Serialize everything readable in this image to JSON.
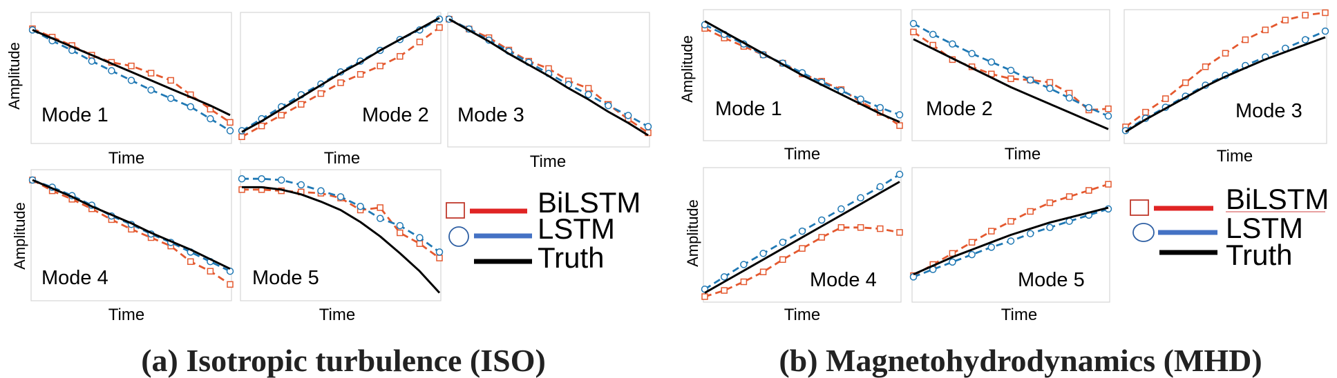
{
  "colors": {
    "bilstm": "#e4582e",
    "lstm": "#1f78b4",
    "truth": "#000000",
    "legend_bilstm": "#e02424",
    "legend_lstm": "#4472c4",
    "legend_box": "#c0392b",
    "legend_circle": "#2e5fa3",
    "frame": "#d6d6d6"
  },
  "chart_data": [
    {
      "panel": "a",
      "caption": "(a) Isotropic turbulence (ISO)",
      "legend": [
        "BiLSTM",
        "LSTM",
        "Truth"
      ],
      "subplots": [
        {
          "type": "line",
          "title": "Mode 1",
          "xlabel": "Time",
          "ylabel": "Amplitude",
          "ylim": [
            0,
            1
          ],
          "x": [
            0,
            1,
            2,
            3,
            4,
            5,
            6,
            7,
            8,
            9,
            10
          ],
          "series": [
            {
              "name": "Truth",
              "values": [
                0.9,
                0.83,
                0.76,
                0.69,
                0.62,
                0.55,
                0.48,
                0.41,
                0.34,
                0.27,
                0.19
              ]
            },
            {
              "name": "LSTM",
              "values": [
                0.9,
                0.81,
                0.73,
                0.64,
                0.56,
                0.48,
                0.4,
                0.33,
                0.26,
                0.16,
                0.06
              ]
            },
            {
              "name": "BiLSTM",
              "values": [
                0.91,
                0.84,
                0.77,
                0.69,
                0.63,
                0.6,
                0.54,
                0.48,
                0.36,
                0.24,
                0.13
              ]
            }
          ]
        },
        {
          "type": "line",
          "title": "Mode 2",
          "xlabel": "Time",
          "ylabel": "",
          "ylim": [
            0,
            1
          ],
          "x": [
            0,
            1,
            2,
            3,
            4,
            5,
            6,
            7,
            8,
            9,
            10
          ],
          "series": [
            {
              "name": "Truth",
              "values": [
                0.05,
                0.14,
                0.24,
                0.34,
                0.44,
                0.54,
                0.63,
                0.73,
                0.82,
                0.91,
                1.0
              ]
            },
            {
              "name": "LSTM",
              "values": [
                0.06,
                0.16,
                0.26,
                0.36,
                0.45,
                0.55,
                0.64,
                0.73,
                0.82,
                0.9,
                0.99
              ]
            },
            {
              "name": "BiLSTM",
              "values": [
                0.01,
                0.1,
                0.19,
                0.28,
                0.37,
                0.46,
                0.53,
                0.6,
                0.68,
                0.8,
                0.92
              ]
            }
          ]
        },
        {
          "type": "line",
          "title": "Mode 3",
          "xlabel": "Time",
          "ylabel": "",
          "ylim": [
            0,
            1
          ],
          "x": [
            0,
            1,
            2,
            3,
            4,
            5,
            6,
            7,
            8,
            9,
            10
          ],
          "series": [
            {
              "name": "Truth",
              "values": [
                0.99,
                0.9,
                0.81,
                0.71,
                0.62,
                0.53,
                0.43,
                0.34,
                0.24,
                0.15,
                0.05
              ]
            },
            {
              "name": "LSTM",
              "values": [
                0.99,
                0.91,
                0.82,
                0.73,
                0.64,
                0.55,
                0.46,
                0.38,
                0.29,
                0.21,
                0.12
              ]
            },
            {
              "name": "BiLSTM",
              "values": [
                0.99,
                0.91,
                0.84,
                0.74,
                0.65,
                0.59,
                0.49,
                0.43,
                0.3,
                0.18,
                0.07
              ]
            }
          ]
        },
        {
          "type": "line",
          "title": "Mode 4",
          "xlabel": "Time",
          "ylabel": "Amplitude",
          "ylim": [
            0,
            1
          ],
          "x": [
            0,
            1,
            2,
            3,
            4,
            5,
            6,
            7,
            8,
            9,
            10
          ],
          "series": [
            {
              "name": "Truth",
              "values": [
                0.96,
                0.89,
                0.82,
                0.74,
                0.67,
                0.6,
                0.52,
                0.45,
                0.38,
                0.3,
                0.22
              ]
            },
            {
              "name": "LSTM",
              "values": [
                0.96,
                0.9,
                0.83,
                0.75,
                0.66,
                0.59,
                0.51,
                0.44,
                0.36,
                0.28,
                0.2
              ]
            },
            {
              "name": "BiLSTM",
              "values": [
                0.96,
                0.87,
                0.8,
                0.72,
                0.63,
                0.55,
                0.48,
                0.41,
                0.28,
                0.2,
                0.09
              ]
            }
          ]
        },
        {
          "type": "line",
          "title": "Mode 5",
          "xlabel": "Time",
          "ylabel": "",
          "ylim": [
            0,
            1
          ],
          "x": [
            0,
            1,
            2,
            3,
            4,
            5,
            6,
            7,
            8,
            9,
            10
          ],
          "series": [
            {
              "name": "Truth",
              "values": [
                0.9,
                0.9,
                0.88,
                0.84,
                0.78,
                0.71,
                0.61,
                0.49,
                0.35,
                0.2,
                0.02
              ]
            },
            {
              "name": "LSTM",
              "values": [
                0.97,
                0.97,
                0.96,
                0.92,
                0.87,
                0.82,
                0.74,
                0.64,
                0.58,
                0.48,
                0.36
              ]
            },
            {
              "name": "BiLSTM",
              "values": [
                0.88,
                0.88,
                0.87,
                0.86,
                0.85,
                0.81,
                0.71,
                0.73,
                0.52,
                0.43,
                0.31
              ]
            }
          ]
        }
      ]
    },
    {
      "panel": "b",
      "caption": "(b) Magnetohydrodynamics (MHD)",
      "legend": [
        "BiLSTM",
        "LSTM",
        "Truth"
      ],
      "subplots": [
        {
          "type": "line",
          "title": "Mode 1",
          "xlabel": "Time",
          "ylabel": "Amplitude",
          "ylim": [
            0,
            1
          ],
          "x": [
            0,
            1,
            2,
            3,
            4,
            5,
            6,
            7,
            8,
            9,
            10
          ],
          "series": [
            {
              "name": "Truth",
              "values": [
                0.95,
                0.86,
                0.77,
                0.68,
                0.59,
                0.5,
                0.42,
                0.34,
                0.26,
                0.18,
                0.11
              ]
            },
            {
              "name": "LSTM",
              "values": [
                0.92,
                0.84,
                0.76,
                0.67,
                0.6,
                0.52,
                0.44,
                0.37,
                0.3,
                0.23,
                0.17
              ]
            },
            {
              "name": "BiLSTM",
              "values": [
                0.89,
                0.81,
                0.74,
                0.67,
                0.6,
                0.51,
                0.45,
                0.38,
                0.28,
                0.19,
                0.08
              ]
            }
          ]
        },
        {
          "type": "line",
          "title": "Mode 2",
          "xlabel": "Time",
          "ylabel": "",
          "ylim": [
            0,
            1
          ],
          "x": [
            0,
            1,
            2,
            3,
            4,
            5,
            6,
            7,
            8,
            9,
            10
          ],
          "series": [
            {
              "name": "Truth",
              "values": [
                0.8,
                0.72,
                0.64,
                0.56,
                0.48,
                0.4,
                0.33,
                0.26,
                0.19,
                0.12,
                0.05
              ]
            },
            {
              "name": "LSTM",
              "values": [
                0.93,
                0.84,
                0.76,
                0.68,
                0.61,
                0.54,
                0.46,
                0.39,
                0.31,
                0.23,
                0.16
              ]
            },
            {
              "name": "BiLSTM",
              "values": [
                0.86,
                0.75,
                0.63,
                0.57,
                0.51,
                0.47,
                0.46,
                0.44,
                0.35,
                0.21,
                0.22
              ]
            }
          ]
        },
        {
          "type": "line",
          "title": "Mode 3",
          "xlabel": "Time",
          "ylabel": "",
          "ylim": [
            0,
            1
          ],
          "x": [
            0,
            1,
            2,
            3,
            4,
            5,
            6,
            7,
            8,
            9,
            10
          ],
          "series": [
            {
              "name": "Truth",
              "values": [
                0.05,
                0.15,
                0.24,
                0.33,
                0.42,
                0.5,
                0.57,
                0.64,
                0.7,
                0.76,
                0.82
              ]
            },
            {
              "name": "LSTM",
              "values": [
                0.06,
                0.16,
                0.25,
                0.34,
                0.43,
                0.51,
                0.59,
                0.66,
                0.73,
                0.8,
                0.87
              ]
            },
            {
              "name": "BiLSTM",
              "values": [
                0.09,
                0.21,
                0.32,
                0.45,
                0.58,
                0.69,
                0.8,
                0.88,
                0.96,
                1.0,
                1.02
              ]
            }
          ]
        },
        {
          "type": "line",
          "title": "Mode 4",
          "xlabel": "Time",
          "ylabel": "Amplitude",
          "ylim": [
            0,
            1
          ],
          "x": [
            0,
            1,
            2,
            3,
            4,
            5,
            6,
            7,
            8,
            9,
            10
          ],
          "series": [
            {
              "name": "Truth",
              "values": [
                0.03,
                0.12,
                0.21,
                0.3,
                0.39,
                0.48,
                0.57,
                0.66,
                0.75,
                0.84,
                0.93
              ]
            },
            {
              "name": "LSTM",
              "values": [
                0.06,
                0.16,
                0.26,
                0.35,
                0.44,
                0.53,
                0.62,
                0.71,
                0.8,
                0.89,
                0.99
              ]
            },
            {
              "name": "BiLSTM",
              "values": [
                0.0,
                0.05,
                0.12,
                0.2,
                0.3,
                0.39,
                0.48,
                0.56,
                0.56,
                0.55,
                0.52
              ]
            }
          ]
        },
        {
          "type": "line",
          "title": "Mode 5",
          "xlabel": "Time",
          "ylabel": "",
          "ylim": [
            0,
            1
          ],
          "x": [
            0,
            1,
            2,
            3,
            4,
            5,
            6,
            7,
            8,
            9,
            10
          ],
          "series": [
            {
              "name": "Truth",
              "values": [
                0.18,
                0.25,
                0.32,
                0.38,
                0.44,
                0.5,
                0.55,
                0.6,
                0.64,
                0.68,
                0.72
              ]
            },
            {
              "name": "LSTM",
              "values": [
                0.16,
                0.22,
                0.28,
                0.34,
                0.4,
                0.45,
                0.51,
                0.56,
                0.61,
                0.66,
                0.71
              ]
            },
            {
              "name": "BiLSTM",
              "values": [
                0.17,
                0.26,
                0.35,
                0.44,
                0.53,
                0.61,
                0.69,
                0.76,
                0.81,
                0.86,
                0.91
              ]
            }
          ]
        }
      ]
    }
  ]
}
